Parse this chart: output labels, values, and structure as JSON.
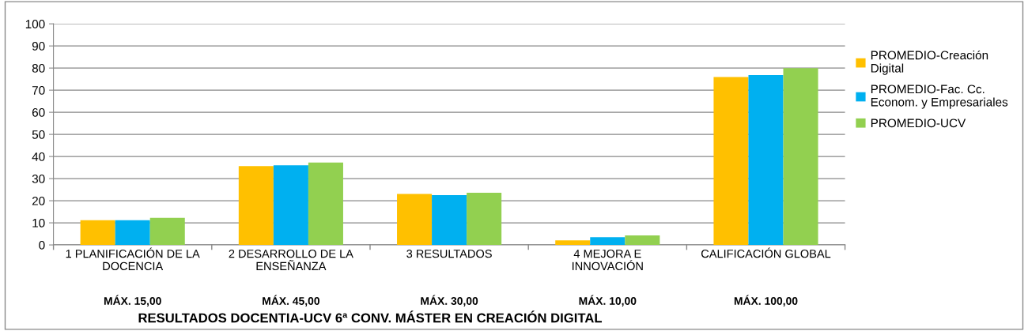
{
  "chart_data": {
    "type": "bar",
    "title": "RESULTADOS DOCENTIA-UCV 6ª CONV. MÁSTER EN CREACIÓN DIGITAL",
    "categories": [
      "1 PLANIFICACIÓN DE LA\nDOCENCIA",
      "2 DESARROLLO DE LA\nENSEÑANZA",
      "3 RESULTADOS",
      "4 MEJORA E\nINNOVACIÓN",
      "CALIFICACIÓN GLOBAL"
    ],
    "series": [
      {
        "name": "PROMEDIO-Creación\nDigital",
        "color": "#ffc000",
        "values": [
          11.2,
          35.7,
          23.1,
          2.1,
          75.9
        ]
      },
      {
        "name": "PROMEDIO-Fac. Cc.\nEconom. y Empresariales",
        "color": "#00b0f0",
        "values": [
          11.2,
          36.0,
          22.5,
          3.5,
          76.8
        ]
      },
      {
        "name": "PROMEDIO-UCV",
        "color": "#92d050",
        "values": [
          12.3,
          37.3,
          23.6,
          4.3,
          80.0
        ]
      }
    ],
    "annotations": [
      "MÁX. 15,00",
      "MÁX. 45,00",
      "MÁX. 30,00",
      "MÁX. 10,00",
      "MÁX. 100,00"
    ],
    "ylim": [
      0,
      100
    ],
    "yticks": [
      0,
      10,
      20,
      30,
      40,
      50,
      60,
      70,
      80,
      90,
      100
    ],
    "grid": "y",
    "legend": "right"
  }
}
